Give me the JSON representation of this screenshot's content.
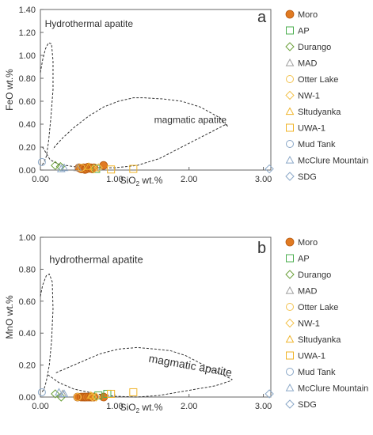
{
  "chart_data": [
    {
      "type": "scatter",
      "panel_label": "a",
      "xlabel_main": "SiO",
      "xlabel_sub": "2",
      "xlabel_tail": " wt.%",
      "ylabel": "FeO wt.%",
      "xlim": [
        0,
        3.1
      ],
      "ylim": [
        0,
        1.4
      ],
      "xticks": [
        "0.00",
        "1.00",
        "2.00",
        "3.00"
      ],
      "xtick_values": [
        0,
        1,
        2,
        3
      ],
      "yticks": [
        "0.00",
        "0.20",
        "0.40",
        "0.60",
        "0.80",
        "1.00",
        "1.20",
        "1.40"
      ],
      "ytick_values": [
        0,
        0.2,
        0.4,
        0.6,
        0.8,
        1.0,
        1.2,
        1.4
      ],
      "grid": false,
      "legend_position": "right",
      "annotations": [
        {
          "id": "hydro",
          "text": "Hydrothermal apatite",
          "x": 0.06,
          "y": 1.25
        },
        {
          "id": "magma",
          "text": "magmatic apatite",
          "x": 1.53,
          "y": 0.41
        }
      ],
      "fields": [
        {
          "name": "hydrothermal",
          "path": [
            [
              0.0,
              0.85
            ],
            [
              0.03,
              0.96
            ],
            [
              0.07,
              1.06
            ],
            [
              0.11,
              1.11
            ],
            [
              0.15,
              1.1
            ],
            [
              0.17,
              0.95
            ],
            [
              0.17,
              0.7
            ],
            [
              0.14,
              0.45
            ],
            [
              0.11,
              0.25
            ],
            [
              0.08,
              0.12
            ],
            [
              0.05,
              0.07
            ],
            [
              0.02,
              0.04
            ]
          ]
        },
        {
          "name": "magmatic",
          "path": [
            [
              0.03,
              0.2
            ],
            [
              0.13,
              0.09
            ],
            [
              0.25,
              0.05
            ],
            [
              0.45,
              0.03
            ],
            [
              0.7,
              0.02
            ],
            [
              1.0,
              0.02
            ],
            [
              1.3,
              0.04
            ],
            [
              1.6,
              0.1
            ],
            [
              1.9,
              0.2
            ],
            [
              2.2,
              0.3
            ],
            [
              2.5,
              0.4
            ],
            [
              2.52,
              0.38
            ],
            [
              2.4,
              0.46
            ],
            [
              2.15,
              0.55
            ],
            [
              1.9,
              0.6
            ],
            [
              1.65,
              0.62
            ],
            [
              1.4,
              0.63
            ],
            [
              1.25,
              0.63
            ],
            [
              1.05,
              0.6
            ],
            [
              0.85,
              0.55
            ],
            [
              0.65,
              0.47
            ],
            [
              0.45,
              0.37
            ],
            [
              0.3,
              0.28
            ],
            [
              0.2,
              0.21
            ],
            [
              0.17,
              0.18
            ]
          ]
        }
      ],
      "series": [
        {
          "name": "Moro",
          "marker": "circle-filled",
          "color": "#E07A22",
          "points": [
            [
              0.52,
              0.02
            ],
            [
              0.55,
              0.01
            ],
            [
              0.58,
              0.02
            ],
            [
              0.6,
              0.005
            ],
            [
              0.62,
              0.01
            ],
            [
              0.64,
              0.025
            ],
            [
              0.66,
              0.015
            ],
            [
              0.68,
              0.02
            ],
            [
              0.7,
              0.01
            ],
            [
              0.72,
              0.02
            ],
            [
              0.85,
              0.04
            ]
          ]
        },
        {
          "name": "AP",
          "marker": "square",
          "color": "#4CAF50",
          "points": [
            [
              0.75,
              0.01
            ]
          ]
        },
        {
          "name": "Durango",
          "marker": "diamond",
          "color": "#6BA03A",
          "points": [
            [
              0.2,
              0.04
            ],
            [
              0.27,
              0.03
            ]
          ]
        },
        {
          "name": "MAD",
          "marker": "triangle",
          "color": "#9E9E9E",
          "points": [
            [
              0.5,
              0.02
            ]
          ]
        },
        {
          "name": "Otter Lake",
          "marker": "circle",
          "color": "#F3C24E",
          "points": [
            [
              0.55,
              0.02
            ]
          ]
        },
        {
          "name": "NW-1",
          "marker": "diamond",
          "color": "#F3C24E",
          "points": [
            [
              0.72,
              0.01
            ],
            [
              0.78,
              0.02
            ]
          ]
        },
        {
          "name": "Sltudyanka",
          "marker": "triangle",
          "color": "#F0B429",
          "points": [
            [
              0.65,
              0.03
            ]
          ]
        },
        {
          "name": "UWA-1",
          "marker": "square",
          "color": "#F0B429",
          "points": [
            [
              0.95,
              0.005
            ],
            [
              1.25,
              0.01
            ]
          ]
        },
        {
          "name": "Mud Tank",
          "marker": "circle",
          "color": "#8AA7C7",
          "points": [
            [
              0.02,
              0.07
            ]
          ]
        },
        {
          "name": "McClure Mountain",
          "marker": "triangle",
          "color": "#8AA7C7",
          "points": [
            [
              0.28,
              0.01
            ],
            [
              0.32,
              0.02
            ]
          ]
        },
        {
          "name": "SDG",
          "marker": "diamond",
          "color": "#8AA7C7",
          "points": [
            [
              3.08,
              0.01
            ]
          ]
        }
      ]
    },
    {
      "type": "scatter",
      "panel_label": "b",
      "xlabel_main": "SiO",
      "xlabel_sub": "2",
      "xlabel_tail": " wt.%",
      "ylabel": "MnO wt.%",
      "xlim": [
        0,
        3.1
      ],
      "ylim": [
        0,
        1.0
      ],
      "xticks": [
        "0.00",
        "1.00",
        "2.00",
        "3.00"
      ],
      "xtick_values": [
        0,
        1,
        2,
        3
      ],
      "yticks": [
        "0.00",
        "0.20",
        "0.40",
        "0.60",
        "0.80",
        "1.00"
      ],
      "ytick_values": [
        0,
        0.2,
        0.4,
        0.6,
        0.8,
        1.0
      ],
      "grid": false,
      "legend_position": "right",
      "annotations": [
        {
          "id": "hydro",
          "text": "hydrothermal apatite",
          "x": 0.12,
          "y": 0.84
        },
        {
          "id": "magma",
          "text": "magmatic apatite",
          "x": 1.45,
          "y": 0.22
        }
      ],
      "fields": [
        {
          "name": "hydrothermal",
          "path": [
            [
              0.0,
              0.63
            ],
            [
              0.03,
              0.7
            ],
            [
              0.08,
              0.76
            ],
            [
              0.12,
              0.77
            ],
            [
              0.16,
              0.72
            ],
            [
              0.17,
              0.55
            ],
            [
              0.15,
              0.35
            ],
            [
              0.12,
              0.2
            ],
            [
              0.08,
              0.1
            ],
            [
              0.05,
              0.05
            ],
            [
              0.02,
              0.03
            ]
          ]
        },
        {
          "name": "magmatic",
          "path": [
            [
              0.1,
              0.14
            ],
            [
              0.25,
              0.09
            ],
            [
              0.45,
              0.05
            ],
            [
              0.75,
              0.02
            ],
            [
              1.0,
              0.005
            ],
            [
              1.3,
              0.0
            ],
            [
              1.6,
              0.01
            ],
            [
              1.85,
              0.03
            ],
            [
              2.1,
              0.05
            ],
            [
              2.35,
              0.07
            ],
            [
              2.55,
              0.1
            ],
            [
              2.58,
              0.11
            ],
            [
              2.45,
              0.14
            ],
            [
              2.2,
              0.2
            ],
            [
              1.95,
              0.26
            ],
            [
              1.75,
              0.29
            ],
            [
              1.55,
              0.3
            ],
            [
              1.3,
              0.31
            ],
            [
              1.05,
              0.3
            ],
            [
              0.8,
              0.27
            ],
            [
              0.55,
              0.22
            ],
            [
              0.35,
              0.18
            ],
            [
              0.2,
              0.15
            ]
          ]
        }
      ],
      "series": [
        {
          "name": "Moro",
          "marker": "circle-filled",
          "color": "#E07A22",
          "points": [
            [
              0.5,
              0.0
            ],
            [
              0.55,
              0.0
            ],
            [
              0.58,
              0.0
            ],
            [
              0.6,
              0.0
            ],
            [
              0.62,
              0.0
            ],
            [
              0.65,
              0.0
            ],
            [
              0.68,
              0.0
            ],
            [
              0.7,
              0.0
            ],
            [
              0.72,
              0.0
            ],
            [
              0.85,
              0.0
            ]
          ]
        },
        {
          "name": "AP",
          "marker": "square",
          "color": "#4CAF50",
          "points": [
            [
              0.78,
              0.01
            ],
            [
              0.9,
              0.02
            ]
          ]
        },
        {
          "name": "Durango",
          "marker": "diamond",
          "color": "#6BA03A",
          "points": [
            [
              0.2,
              0.02
            ],
            [
              0.28,
              0.0
            ]
          ]
        },
        {
          "name": "MAD",
          "marker": "triangle",
          "color": "#9E9E9E",
          "points": [
            [
              0.3,
              0.02
            ]
          ]
        },
        {
          "name": "Otter Lake",
          "marker": "circle",
          "color": "#F3C24E",
          "points": [
            [
              0.5,
              0.0
            ]
          ]
        },
        {
          "name": "NW-1",
          "marker": "diamond",
          "color": "#F3C24E",
          "points": [
            [
              0.7,
              0.0
            ],
            [
              0.75,
              0.0
            ]
          ]
        },
        {
          "name": "Sltudyanka",
          "marker": "triangle",
          "color": "#F0B429",
          "points": [
            [
              0.68,
              0.01
            ]
          ]
        },
        {
          "name": "UWA-1",
          "marker": "square",
          "color": "#F0B429",
          "points": [
            [
              0.95,
              0.02
            ],
            [
              1.25,
              0.03
            ]
          ]
        },
        {
          "name": "Mud Tank",
          "marker": "circle",
          "color": "#8AA7C7",
          "points": [
            [
              0.02,
              0.03
            ]
          ]
        },
        {
          "name": "McClure Mountain",
          "marker": "triangle",
          "color": "#8AA7C7",
          "points": [
            [
              0.25,
              0.03
            ],
            [
              0.32,
              0.02
            ]
          ]
        },
        {
          "name": "SDG",
          "marker": "diamond",
          "color": "#8AA7C7",
          "points": [
            [
              3.08,
              0.02
            ]
          ]
        }
      ]
    }
  ]
}
